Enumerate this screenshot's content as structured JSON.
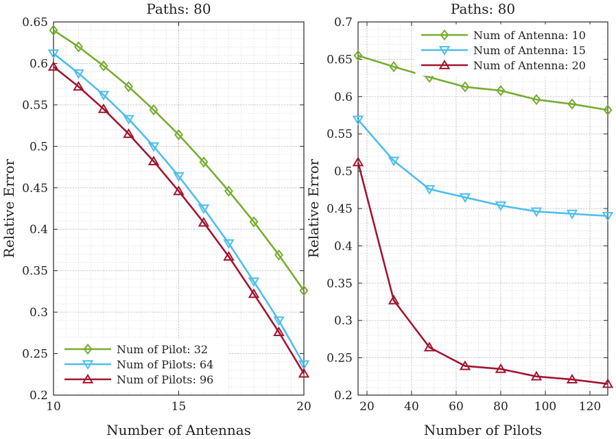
{
  "chart_data": [
    {
      "type": "line",
      "title": "Paths: 80",
      "xlabel": "Number of Antennas",
      "ylabel": "Relative Error",
      "xlim": [
        10,
        20
      ],
      "ylim": [
        0.2,
        0.65
      ],
      "xticks": [
        10,
        15,
        20
      ],
      "xtick_labels": [
        "10",
        "15",
        "20"
      ],
      "yticks": [
        0.2,
        0.25,
        0.3,
        0.35,
        0.4,
        0.45,
        0.5,
        0.55,
        0.6,
        0.65
      ],
      "ytick_labels": [
        "0.2",
        "0.25",
        "0.3",
        "0.35",
        "0.4",
        "0.45",
        "0.5",
        "0.55",
        "0.6",
        "0.65"
      ],
      "grid": true,
      "legend_position": "bottom-left",
      "x": [
        10,
        11,
        12,
        13,
        14,
        15,
        16,
        17,
        18,
        19,
        20
      ],
      "series": [
        {
          "name": "Num of Pilot: 32",
          "color": "#77AC30",
          "marker": "diamond",
          "values": [
            0.64,
            0.62,
            0.597,
            0.572,
            0.544,
            0.514,
            0.481,
            0.446,
            0.409,
            0.369,
            0.326
          ]
        },
        {
          "name": "Num of Pilots: 64",
          "color": "#4DBEEE",
          "marker": "triangle-down",
          "values": [
            0.612,
            0.588,
            0.562,
            0.533,
            0.5,
            0.464,
            0.425,
            0.383,
            0.337,
            0.29,
            0.237
          ]
        },
        {
          "name": "Num of Pilots: 96",
          "color": "#A2142F",
          "marker": "triangle-up",
          "values": [
            0.596,
            0.572,
            0.545,
            0.515,
            0.482,
            0.446,
            0.408,
            0.367,
            0.322,
            0.276,
            0.226
          ]
        }
      ]
    },
    {
      "type": "line",
      "title": "Paths: 80",
      "xlabel": "Number of Pilots",
      "ylabel": "Relative Error",
      "xlim": [
        16,
        128
      ],
      "ylim": [
        0.2,
        0.7
      ],
      "xticks": [
        20,
        40,
        60,
        80,
        100,
        120
      ],
      "xtick_labels": [
        "20",
        "40",
        "60",
        "80",
        "100",
        "120"
      ],
      "yticks": [
        0.2,
        0.25,
        0.3,
        0.35,
        0.4,
        0.45,
        0.5,
        0.55,
        0.6,
        0.65,
        0.7
      ],
      "ytick_labels": [
        "0.2",
        "0.25",
        "0.3",
        "0.35",
        "0.4",
        "0.45",
        "0.5",
        "0.55",
        "0.6",
        "0.65",
        "0.7"
      ],
      "grid": true,
      "legend_position": "top-right",
      "x": [
        16,
        32,
        48,
        64,
        80,
        96,
        112,
        128
      ],
      "series": [
        {
          "name": "Num of Antenna: 10",
          "color": "#77AC30",
          "marker": "diamond",
          "values": [
            0.655,
            0.64,
            0.626,
            0.613,
            0.608,
            0.596,
            0.59,
            0.582
          ]
        },
        {
          "name": "Num of Antenna: 15",
          "color": "#4DBEEE",
          "marker": "triangle-down",
          "values": [
            0.569,
            0.514,
            0.476,
            0.465,
            0.454,
            0.446,
            0.443,
            0.44
          ]
        },
        {
          "name": "Num of Antenna: 20",
          "color": "#A2142F",
          "marker": "triangle-up",
          "values": [
            0.512,
            0.327,
            0.264,
            0.239,
            0.235,
            0.225,
            0.221,
            0.215
          ]
        }
      ]
    }
  ]
}
